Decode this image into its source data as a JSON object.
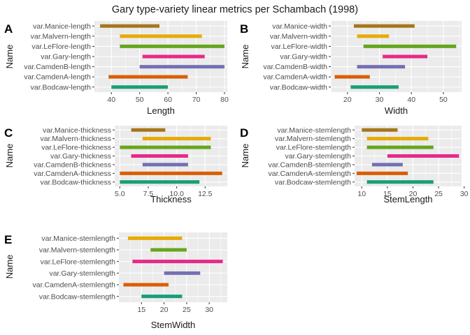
{
  "title": "Gary type-variety linear metrics per Schambach (1998)",
  "chart_data": [
    {
      "type": "bar",
      "panel": "A",
      "xlabel": "Length",
      "ylabel": "Name",
      "xlim": [
        34,
        81
      ],
      "xticks": [
        40,
        50,
        60,
        70,
        80
      ],
      "categories": [
        "var.Bodcaw-length",
        "var.CamdenA-length",
        "var.CamdenB-length",
        "var.Gary-length",
        "var.LeFlore-length",
        "var.Malvern-length",
        "var.Manice-length"
      ],
      "ranges": [
        [
          40,
          60
        ],
        [
          39,
          67
        ],
        [
          50,
          80
        ],
        [
          51,
          73
        ],
        [
          43,
          80
        ],
        [
          43,
          72
        ],
        [
          36,
          57
        ]
      ],
      "colors": [
        "#1b9e77",
        "#d95f02",
        "#7570b3",
        "#e7298a",
        "#66a61e",
        "#e6ab02",
        "#a6761d"
      ]
    },
    {
      "type": "bar",
      "panel": "B",
      "xlabel": "Width",
      "ylabel": "Name",
      "xlim": [
        14.8,
        55.7
      ],
      "xticks": [
        20,
        30,
        40,
        50
      ],
      "categories": [
        "var.Bodcaw-width",
        "var.CamdenA-width",
        "var.CamdenB-width",
        "var.Gary-width",
        "var.LeFlore-width",
        "var.Malvern-width",
        "var.Manice-width"
      ],
      "ranges": [
        [
          21,
          36
        ],
        [
          16,
          27
        ],
        [
          23,
          38
        ],
        [
          31,
          45
        ],
        [
          25,
          54
        ],
        [
          23,
          33
        ],
        [
          22,
          41
        ]
      ],
      "colors": [
        "#1b9e77",
        "#d95f02",
        "#7570b3",
        "#e7298a",
        "#66a61e",
        "#e6ab02",
        "#a6761d"
      ]
    },
    {
      "type": "bar",
      "panel": "C",
      "xlabel": "Thickness",
      "ylabel": "Name",
      "xlim": [
        4.55,
        14.45
      ],
      "xticks": [
        5.0,
        7.5,
        10.0,
        12.5
      ],
      "xtick_labels": [
        "5.0",
        "7.5",
        "10.0",
        "12.5"
      ],
      "categories": [
        "var.Bodcaw-thickness",
        "var.CamdenA-thickness",
        "var.CamdenB-thickness",
        "var.Gary-thickness",
        "var.LeFlore-thickness",
        "var.Malvern-thickness",
        "var.Manice-thickness"
      ],
      "ranges": [
        [
          5,
          12
        ],
        [
          5,
          14
        ],
        [
          7,
          11
        ],
        [
          6,
          11
        ],
        [
          5,
          13
        ],
        [
          7,
          13
        ],
        [
          6,
          9
        ]
      ],
      "colors": [
        "#1b9e77",
        "#d95f02",
        "#7570b3",
        "#e7298a",
        "#66a61e",
        "#e6ab02",
        "#a6761d"
      ]
    },
    {
      "type": "bar",
      "panel": "D",
      "xlabel": "StemLength",
      "ylabel": "Name",
      "xlim": [
        8.6,
        29.5
      ],
      "xticks": [
        10,
        15,
        20,
        25,
        30
      ],
      "categories": [
        "var.Bodcaw-stemlength",
        "var.CamdenA-stemlength",
        "var.CamdenB-stemlength",
        "var.Gary-stemlength",
        "var.LeFlore-stemlength",
        "var.Malvern-stemlength",
        "var.Manice-stemlength"
      ],
      "ranges": [
        [
          11,
          24
        ],
        [
          9,
          19
        ],
        [
          12,
          18
        ],
        [
          15,
          29
        ],
        [
          11,
          24
        ],
        [
          11,
          23
        ],
        [
          10,
          17
        ]
      ],
      "colors": [
        "#1b9e77",
        "#d95f02",
        "#7570b3",
        "#e7298a",
        "#66a61e",
        "#e6ab02",
        "#a6761d"
      ]
    },
    {
      "type": "bar",
      "panel": "E",
      "xlabel": "StemWidth",
      "ylabel": "Name",
      "xlim": [
        10,
        34
      ],
      "xticks": [
        15,
        20,
        25,
        30
      ],
      "categories": [
        "var.Bodcaw-stemlength",
        "var.CamdenA-stemlength",
        "var.Gary-stemlength",
        "var.LeFlore-stemlength",
        "var.Malvern-stemlength",
        "var.Manice-stemlength"
      ],
      "ranges": [
        [
          15,
          24
        ],
        [
          11,
          21
        ],
        [
          20,
          28
        ],
        [
          13,
          33
        ],
        [
          17,
          25
        ],
        [
          12,
          24
        ]
      ],
      "colors": [
        "#1b9e77",
        "#d95f02",
        "#7570b3",
        "#e7298a",
        "#66a61e",
        "#e6ab02"
      ]
    }
  ]
}
